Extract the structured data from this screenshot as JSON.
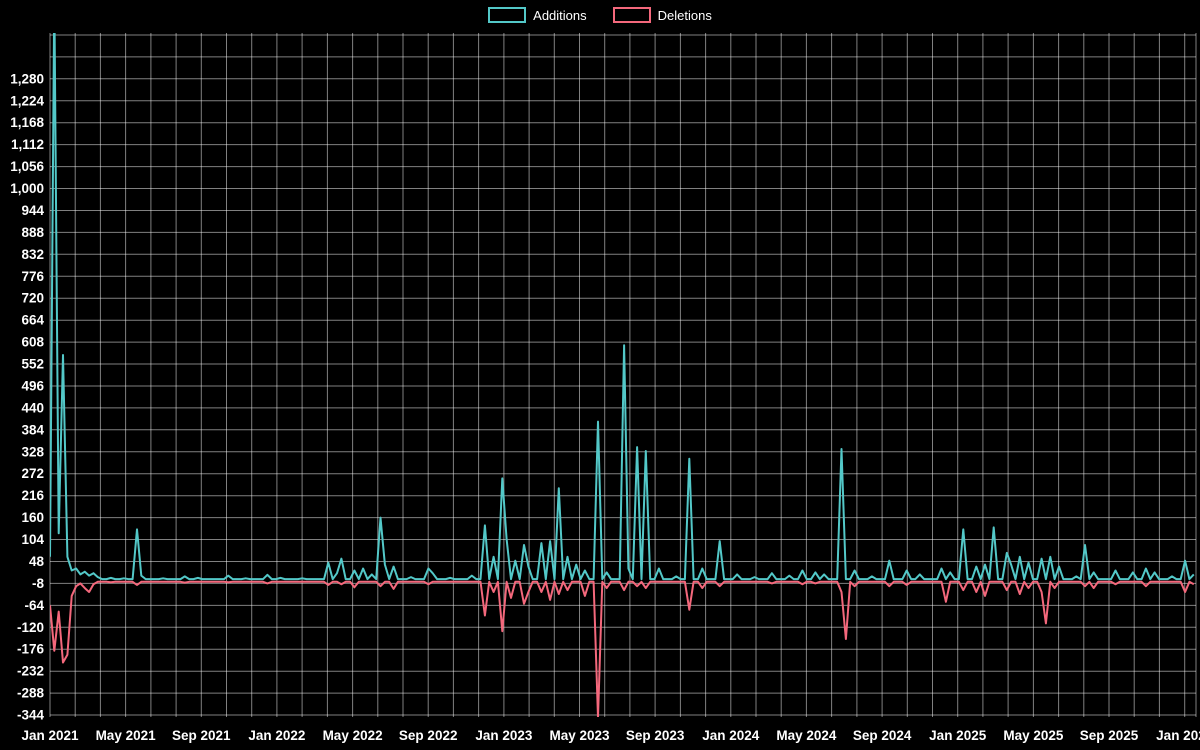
{
  "chart_data": {
    "type": "line",
    "title": "",
    "xlabel": "",
    "ylabel": "",
    "grid": true,
    "legend_position": "top-center",
    "colors": {
      "background": "#000000",
      "grid": "#ffffff",
      "text": "#ffffff"
    },
    "ylim": [
      -349,
      1397
    ],
    "y_grid_step": 56,
    "y_ticks": [
      1280,
      1224,
      1168,
      1112,
      1056,
      1000,
      944,
      888,
      832,
      776,
      720,
      664,
      608,
      552,
      496,
      440,
      384,
      328,
      272,
      216,
      160,
      104,
      48,
      -8,
      -64,
      -120,
      -176,
      -232,
      -288,
      -344
    ],
    "y_tick_labels": [
      "1,280",
      "1,224",
      "1,168",
      "1,112",
      "1,056",
      "1,000",
      "944",
      "888",
      "832",
      "776",
      "720",
      "664",
      "608",
      "552",
      "496",
      "440",
      "384",
      "328",
      "272",
      "216",
      "160",
      "104",
      "48",
      "-8",
      "-64",
      "-120",
      "-176",
      "-232",
      "-288",
      "-344"
    ],
    "x_tick_labels": [
      "Jan 2021",
      "May 2021",
      "Sep 2021",
      "Jan 2022",
      "May 2022",
      "Sep 2022",
      "Jan 2023",
      "May 2023",
      "Sep 2023",
      "Jan 2024",
      "May 2024",
      "Sep 2024",
      "Jan 2025",
      "May 2025",
      "Sep 2025",
      "Jan 2026"
    ],
    "x_tick_month_positions": [
      0,
      4,
      8,
      12,
      16,
      20,
      24,
      28,
      32,
      36,
      40,
      44,
      48,
      52,
      56,
      60
    ],
    "x_month_max": 60.6,
    "x_grid_step_months": 1.33333,
    "x_unit": "weeks since Jan 2021",
    "months_per_week": 0.22997,
    "n_points": 264,
    "series": [
      {
        "name": "Additions",
        "color": "#53c8c8",
        "fill_value": 3,
        "points": [
          [
            0,
            60
          ],
          [
            1,
            1500
          ],
          [
            2,
            120
          ],
          [
            3,
            575
          ],
          [
            4,
            60
          ],
          [
            5,
            25
          ],
          [
            6,
            30
          ],
          [
            7,
            15
          ],
          [
            8,
            22
          ],
          [
            9,
            12
          ],
          [
            10,
            18
          ],
          [
            11,
            8
          ],
          [
            14,
            6
          ],
          [
            17,
            5
          ],
          [
            20,
            130
          ],
          [
            21,
            12
          ],
          [
            26,
            5
          ],
          [
            31,
            10
          ],
          [
            34,
            6
          ],
          [
            41,
            12
          ],
          [
            45,
            5
          ],
          [
            50,
            14
          ],
          [
            53,
            6
          ],
          [
            58,
            5
          ],
          [
            64,
            45
          ],
          [
            66,
            18
          ],
          [
            67,
            55
          ],
          [
            70,
            25
          ],
          [
            72,
            30
          ],
          [
            74,
            15
          ],
          [
            76,
            160
          ],
          [
            77,
            40
          ],
          [
            79,
            35
          ],
          [
            83,
            8
          ],
          [
            87,
            30
          ],
          [
            88,
            18
          ],
          [
            92,
            6
          ],
          [
            97,
            12
          ],
          [
            100,
            140
          ],
          [
            102,
            60
          ],
          [
            104,
            260
          ],
          [
            105,
            105
          ],
          [
            107,
            50
          ],
          [
            109,
            90
          ],
          [
            110,
            35
          ],
          [
            113,
            95
          ],
          [
            115,
            100
          ],
          [
            117,
            235
          ],
          [
            119,
            60
          ],
          [
            121,
            40
          ],
          [
            123,
            25
          ],
          [
            126,
            405
          ],
          [
            128,
            20
          ],
          [
            132,
            600
          ],
          [
            133,
            30
          ],
          [
            135,
            340
          ],
          [
            137,
            330
          ],
          [
            140,
            30
          ],
          [
            144,
            10
          ],
          [
            147,
            310
          ],
          [
            150,
            30
          ],
          [
            154,
            100
          ],
          [
            158,
            15
          ],
          [
            162,
            8
          ],
          [
            166,
            18
          ],
          [
            170,
            12
          ],
          [
            173,
            25
          ],
          [
            176,
            20
          ],
          [
            178,
            15
          ],
          [
            182,
            335
          ],
          [
            185,
            25
          ],
          [
            189,
            10
          ],
          [
            193,
            50
          ],
          [
            197,
            25
          ],
          [
            200,
            15
          ],
          [
            205,
            30
          ],
          [
            207,
            20
          ],
          [
            210,
            130
          ],
          [
            213,
            35
          ],
          [
            215,
            40
          ],
          [
            217,
            135
          ],
          [
            220,
            70
          ],
          [
            221,
            40
          ],
          [
            223,
            60
          ],
          [
            225,
            45
          ],
          [
            228,
            55
          ],
          [
            230,
            60
          ],
          [
            232,
            35
          ],
          [
            236,
            10
          ],
          [
            238,
            90
          ],
          [
            240,
            20
          ],
          [
            245,
            25
          ],
          [
            249,
            20
          ],
          [
            252,
            30
          ],
          [
            254,
            20
          ],
          [
            258,
            10
          ],
          [
            261,
            50
          ],
          [
            263,
            15
          ]
        ]
      },
      {
        "name": "Deletions",
        "color": "#f4687c",
        "fill_value": -4,
        "points": [
          [
            0,
            -64
          ],
          [
            1,
            -180
          ],
          [
            2,
            -80
          ],
          [
            3,
            -210
          ],
          [
            4,
            -190
          ],
          [
            5,
            -40
          ],
          [
            6,
            -15
          ],
          [
            7,
            -8
          ],
          [
            8,
            -20
          ],
          [
            9,
            -30
          ],
          [
            10,
            -10
          ],
          [
            14,
            -5
          ],
          [
            20,
            -12
          ],
          [
            31,
            -6
          ],
          [
            41,
            -5
          ],
          [
            50,
            -8
          ],
          [
            64,
            -12
          ],
          [
            67,
            -10
          ],
          [
            70,
            -18
          ],
          [
            76,
            -15
          ],
          [
            79,
            -22
          ],
          [
            87,
            -10
          ],
          [
            100,
            -90
          ],
          [
            102,
            -30
          ],
          [
            104,
            -130
          ],
          [
            106,
            -45
          ],
          [
            109,
            -60
          ],
          [
            110,
            -30
          ],
          [
            113,
            -30
          ],
          [
            115,
            -50
          ],
          [
            117,
            -35
          ],
          [
            119,
            -25
          ],
          [
            123,
            -40
          ],
          [
            126,
            -350
          ],
          [
            128,
            -20
          ],
          [
            132,
            -25
          ],
          [
            135,
            -15
          ],
          [
            137,
            -20
          ],
          [
            147,
            -75
          ],
          [
            150,
            -20
          ],
          [
            154,
            -15
          ],
          [
            166,
            -8
          ],
          [
            173,
            -10
          ],
          [
            176,
            -8
          ],
          [
            182,
            -30
          ],
          [
            183,
            -150
          ],
          [
            185,
            -15
          ],
          [
            193,
            -15
          ],
          [
            197,
            -12
          ],
          [
            206,
            -55
          ],
          [
            210,
            -25
          ],
          [
            213,
            -30
          ],
          [
            215,
            -40
          ],
          [
            220,
            -25
          ],
          [
            223,
            -35
          ],
          [
            225,
            -20
          ],
          [
            228,
            -30
          ],
          [
            229,
            -110
          ],
          [
            231,
            -20
          ],
          [
            238,
            -15
          ],
          [
            240,
            -20
          ],
          [
            245,
            -10
          ],
          [
            252,
            -15
          ],
          [
            261,
            -30
          ],
          [
            263,
            -10
          ]
        ]
      }
    ]
  }
}
